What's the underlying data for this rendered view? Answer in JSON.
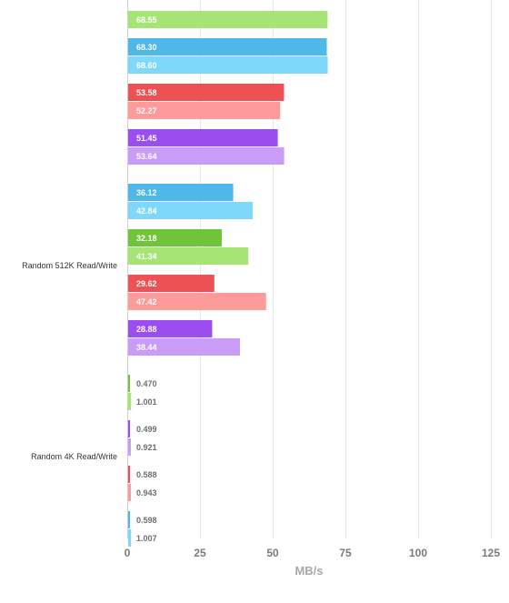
{
  "chart_data": {
    "type": "bar",
    "orientation": "horizontal",
    "xlabel": "MB/s",
    "xlim": [
      0,
      125
    ],
    "xticks": [
      0,
      25,
      50,
      75,
      100,
      125
    ],
    "grid": true,
    "colors": {
      "green_dark": "#6fc43a",
      "green_light": "#a6e575",
      "blue_dark": "#4db9ea",
      "blue_light": "#7ed8fb",
      "red_dark": "#ee5153",
      "red_light": "#fd9a9a",
      "purple_dark": "#9b4ef0",
      "purple_light": "#c89cf7"
    },
    "groups": [
      {
        "label": "",
        "pairs": [
          {
            "color": "green",
            "values": [
              null,
              68.55
            ],
            "labels": [
              "",
              "68.55"
            ]
          },
          {
            "color": "blue",
            "values": [
              68.3,
              68.6
            ],
            "labels": [
              "68.30",
              "68.60"
            ]
          },
          {
            "color": "red",
            "values": [
              53.58,
              52.27
            ],
            "labels": [
              "53.58",
              "52.27"
            ]
          },
          {
            "color": "purple",
            "values": [
              51.45,
              53.64
            ],
            "labels": [
              "51.45",
              "53.64"
            ]
          }
        ]
      },
      {
        "label": "Random 512K Read/Write",
        "pairs": [
          {
            "color": "blue",
            "values": [
              36.12,
              42.84
            ],
            "labels": [
              "36.12",
              "42.84"
            ]
          },
          {
            "color": "green",
            "values": [
              32.18,
              41.34
            ],
            "labels": [
              "32.18",
              "41.34"
            ]
          },
          {
            "color": "red",
            "values": [
              29.62,
              47.42
            ],
            "labels": [
              "29.62",
              "47.42"
            ]
          },
          {
            "color": "purple",
            "values": [
              28.88,
              38.44
            ],
            "labels": [
              "28.88",
              "38.44"
            ]
          }
        ]
      },
      {
        "label": "Random 4K Read/Write",
        "pairs": [
          {
            "color": "green",
            "values": [
              0.47,
              1.001
            ],
            "labels": [
              "0.470",
              "1.001"
            ]
          },
          {
            "color": "purple",
            "values": [
              0.499,
              0.921
            ],
            "labels": [
              "0.499",
              "0.921"
            ]
          },
          {
            "color": "red",
            "values": [
              0.588,
              0.943
            ],
            "labels": [
              "0.588",
              "0.943"
            ]
          },
          {
            "color": "blue",
            "values": [
              0.598,
              1.007
            ],
            "labels": [
              "0.598",
              "1.007"
            ]
          }
        ]
      }
    ]
  }
}
